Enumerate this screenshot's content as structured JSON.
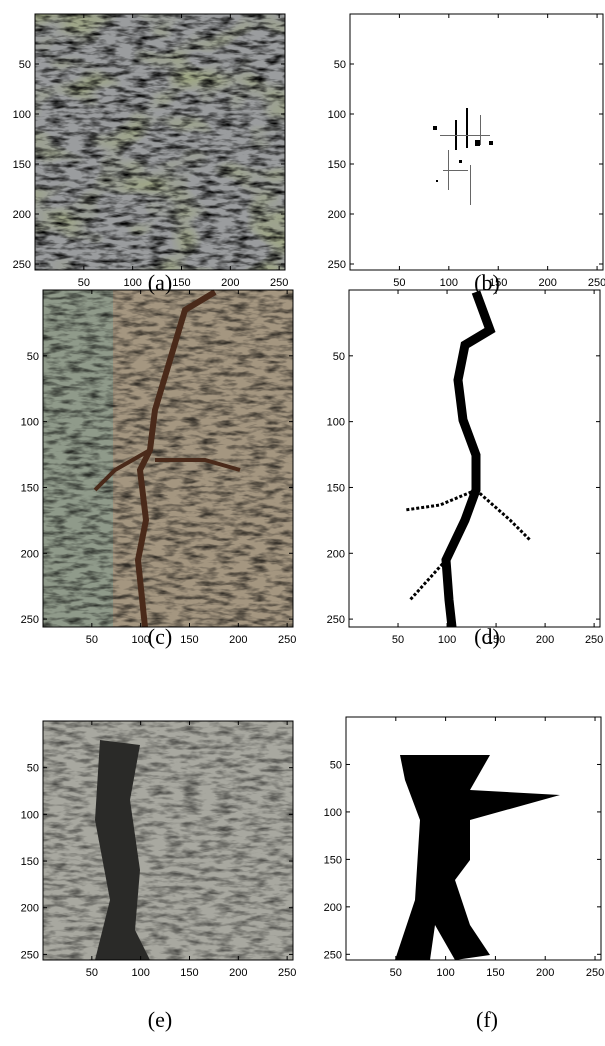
{
  "panels": [
    {
      "label": "(a)",
      "xlim": [
        0,
        256
      ],
      "ylim": [
        0,
        256
      ],
      "xticks": [
        50,
        100,
        150,
        200,
        250
      ],
      "yticks": [
        50,
        100,
        150,
        200,
        250
      ]
    },
    {
      "label": "(b)",
      "xlim": [
        0,
        256
      ],
      "ylim": [
        0,
        256
      ],
      "xticks": [
        50,
        100,
        150,
        200,
        250
      ],
      "yticks": [
        50,
        100,
        150,
        200,
        250
      ]
    },
    {
      "label": "(c)",
      "xlim": [
        0,
        256
      ],
      "ylim": [
        0,
        256
      ],
      "xticks": [
        50,
        100,
        150,
        200,
        250
      ],
      "yticks": [
        50,
        100,
        150,
        200,
        250
      ]
    },
    {
      "label": "(d)",
      "xlim": [
        0,
        256
      ],
      "ylim": [
        0,
        256
      ],
      "xticks": [
        50,
        100,
        150,
        200,
        250
      ],
      "yticks": [
        50,
        100,
        150,
        200,
        250
      ]
    },
    {
      "label": "(e)",
      "xlim": [
        0,
        256
      ],
      "ylim": [
        0,
        256
      ],
      "xticks": [
        50,
        100,
        150,
        200,
        250
      ],
      "yticks": [
        50,
        100,
        150,
        200,
        250
      ]
    },
    {
      "label": "(f)",
      "xlim": [
        0,
        256
      ],
      "ylim": [
        0,
        256
      ],
      "xticks": [
        50,
        100,
        150,
        200,
        250
      ],
      "yticks": [
        50,
        100,
        150,
        200,
        250
      ]
    }
  ]
}
